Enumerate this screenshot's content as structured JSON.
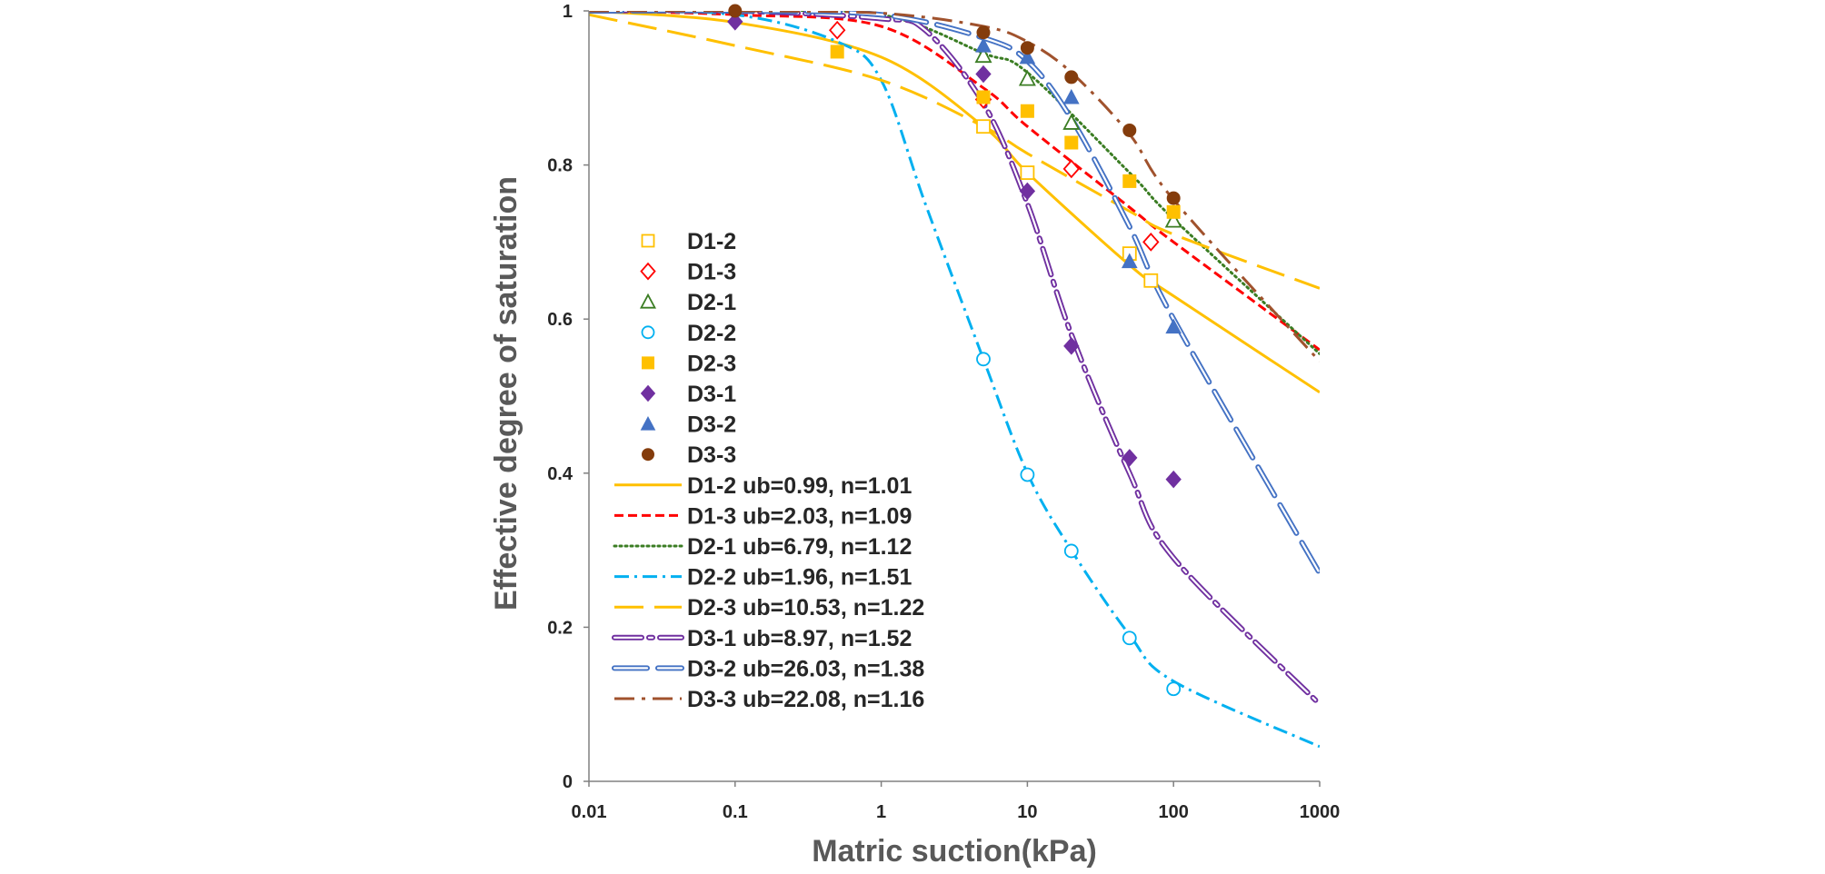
{
  "chart_data": {
    "type": "scatter",
    "title": "",
    "xlabel": "Matric suction(kPa)",
    "ylabel": "Effective degree of saturation",
    "x_scale": "log",
    "xlim": [
      0.01,
      1000
    ],
    "ylim": [
      0,
      1
    ],
    "x_ticks": [
      0.01,
      0.1,
      1,
      10,
      100,
      1000
    ],
    "x_tick_labels": [
      "0.01",
      "0.1",
      "1",
      "10",
      "100",
      "1000"
    ],
    "y_ticks": [
      0,
      0.2,
      0.4,
      0.6,
      0.8,
      1
    ],
    "y_tick_labels": [
      "0",
      "0.2",
      "0.4",
      "0.6",
      "0.8",
      "1"
    ],
    "grid": false,
    "legend_position": "left, inside",
    "points": [
      {
        "name": "D1-2",
        "marker": "square-open",
        "color": "#FFC000",
        "x": [
          5,
          10,
          50,
          70
        ],
        "y": [
          0.85,
          0.79,
          0.685,
          0.65
        ]
      },
      {
        "name": "D1-3",
        "marker": "diamond-open",
        "color": "#FF0000",
        "x": [
          0.5,
          5,
          20,
          70
        ],
        "y": [
          0.975,
          0.885,
          0.795,
          0.7
        ]
      },
      {
        "name": "D2-1",
        "marker": "triangle-open",
        "color": "#3B7D23",
        "x": [
          5,
          10,
          20,
          100
        ],
        "y": [
          0.942,
          0.912,
          0.855,
          0.728
        ]
      },
      {
        "name": "D2-2",
        "marker": "circle-open",
        "color": "#00B0F0",
        "x": [
          5,
          10,
          20,
          50,
          100
        ],
        "y": [
          0.548,
          0.398,
          0.299,
          0.186,
          0.12
        ]
      },
      {
        "name": "D2-3",
        "marker": "square",
        "color": "#FFC000",
        "x": [
          0.5,
          5,
          10,
          20,
          50,
          100
        ],
        "y": [
          0.947,
          0.888,
          0.87,
          0.829,
          0.779,
          0.739
        ]
      },
      {
        "name": "D3-1",
        "marker": "diamond",
        "color": "#7030A0",
        "x": [
          0.1,
          5,
          10,
          20,
          50,
          100
        ],
        "y": [
          0.986,
          0.918,
          0.766,
          0.565,
          0.42,
          0.392
        ]
      },
      {
        "name": "D3-2",
        "marker": "triangle",
        "color": "#4472C4",
        "x": [
          5,
          10,
          20,
          50,
          100
        ],
        "y": [
          0.955,
          0.94,
          0.888,
          0.675,
          0.59
        ]
      },
      {
        "name": "D3-3",
        "marker": "circle",
        "color": "#843C0C",
        "x": [
          0.1,
          5,
          10,
          20,
          50,
          100
        ],
        "y": [
          1.0,
          0.972,
          0.952,
          0.914,
          0.845,
          0.757
        ]
      }
    ],
    "series": [
      {
        "name": "D1-2 ub=0.99, n=1.01",
        "style": "solid",
        "color": "#FFC000",
        "ub": 0.99,
        "n": 1.01,
        "x": [
          0.01,
          0.1,
          1,
          5,
          10,
          50,
          100,
          1000
        ],
        "y": [
          1.0,
          0.985,
          0.94,
          0.85,
          0.79,
          0.67,
          0.63,
          0.505
        ]
      },
      {
        "name": "D1-3 ub=2.03, n=1.09",
        "style": "dashed",
        "color": "#FF0000",
        "ub": 2.03,
        "n": 1.09,
        "x": [
          0.01,
          0.1,
          1,
          5,
          10,
          50,
          100,
          1000
        ],
        "y": [
          1.0,
          0.995,
          0.98,
          0.9,
          0.85,
          0.745,
          0.7,
          0.56
        ]
      },
      {
        "name": "D2-1 ub=6.79, n=1.12",
        "style": "dotted",
        "color": "#3B7D23",
        "ub": 6.79,
        "n": 1.12,
        "x": [
          0.01,
          0.1,
          1,
          5,
          10,
          50,
          100,
          1000
        ],
        "y": [
          1.0,
          1.0,
          0.995,
          0.945,
          0.92,
          0.79,
          0.73,
          0.555
        ]
      },
      {
        "name": "D2-2 ub=1.96, n=1.51",
        "style": "dash-dot",
        "color": "#00B0F0",
        "ub": 1.96,
        "n": 1.51,
        "x": [
          0.01,
          0.1,
          0.5,
          1,
          2,
          5,
          10,
          20,
          50,
          100,
          1000
        ],
        "y": [
          1.0,
          0.995,
          0.96,
          0.91,
          0.75,
          0.548,
          0.4,
          0.3,
          0.19,
          0.13,
          0.045
        ]
      },
      {
        "name": "D2-3 ub=10.53, n=1.22",
        "style": "long-dash",
        "color": "#FFC000",
        "ub": 10.53,
        "n": 1.22,
        "x": [
          0.01,
          0.1,
          1,
          5,
          10,
          50,
          100,
          1000
        ],
        "y": [
          0.995,
          0.955,
          0.91,
          0.85,
          0.815,
          0.74,
          0.71,
          0.64
        ]
      },
      {
        "name": "D3-1 ub=8.97, n=1.52",
        "style": "double-dash-dot",
        "color": "#7030A0",
        "ub": 8.97,
        "n": 1.52,
        "x": [
          0.01,
          0.1,
          1,
          2,
          5,
          10,
          20,
          50,
          100,
          1000
        ],
        "y": [
          1.0,
          1.0,
          0.99,
          0.975,
          0.88,
          0.75,
          0.58,
          0.4,
          0.29,
          0.1
        ]
      },
      {
        "name": "D3-2 ub=26.03, n=1.38",
        "style": "double-long-dash",
        "color": "#4472C4",
        "ub": 26.03,
        "n": 1.38,
        "x": [
          0.01,
          0.1,
          1,
          5,
          10,
          20,
          50,
          100,
          1000
        ],
        "y": [
          1.0,
          1.0,
          0.995,
          0.965,
          0.935,
          0.86,
          0.72,
          0.6,
          0.27
        ]
      },
      {
        "name": "D3-3 ub=22.08, n=1.16",
        "style": "long-dash-dot",
        "color": "#A0522D",
        "ub": 22.08,
        "n": 1.16,
        "x": [
          0.01,
          0.1,
          1,
          5,
          10,
          20,
          50,
          100,
          1000
        ],
        "y": [
          1.0,
          1.0,
          0.997,
          0.98,
          0.96,
          0.92,
          0.84,
          0.755,
          0.545
        ]
      }
    ]
  }
}
